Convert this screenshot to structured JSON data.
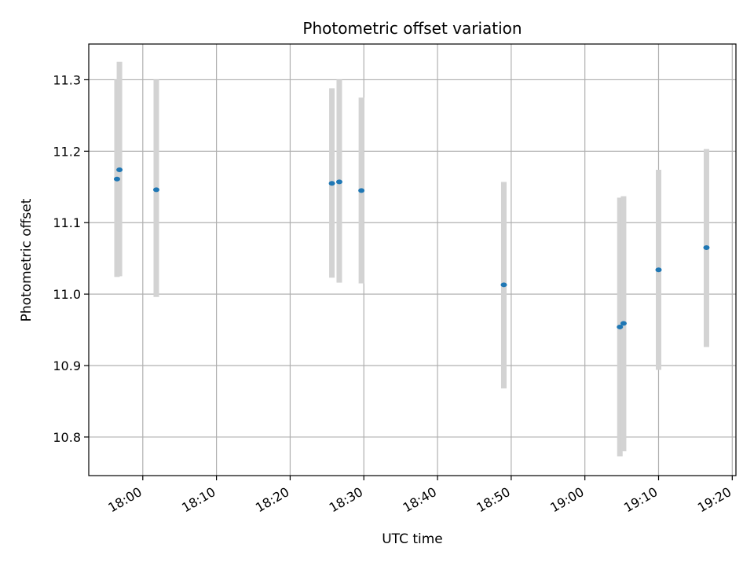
{
  "chart_data": {
    "type": "scatter",
    "title": "Photometric offset variation",
    "xlabel": "UTC time",
    "ylabel": "Photometric offset",
    "x_tick_labels": [
      "18:00",
      "18:10",
      "18:20",
      "18:30",
      "18:40",
      "18:50",
      "19:00",
      "19:10",
      "19:20"
    ],
    "y_tick_labels": [
      "10.8",
      "10.9",
      "11.0",
      "11.1",
      "11.2",
      "11.3"
    ],
    "xlim": [
      "17:52:40",
      "19:20:30"
    ],
    "ylim": [
      10.746,
      11.35
    ],
    "grid": true,
    "legend": "none",
    "series": [
      {
        "points": [
          {
            "x": "17:56:30",
            "y": 11.161,
            "err_low": 11.024,
            "err_high": 11.3
          },
          {
            "x": "17:56:50",
            "y": 11.174,
            "err_low": 11.025,
            "err_high": 11.325
          },
          {
            "x": "18:01:50",
            "y": 11.146,
            "err_low": 10.996,
            "err_high": 11.3
          },
          {
            "x": "18:25:40",
            "y": 11.155,
            "err_low": 11.023,
            "err_high": 11.288
          },
          {
            "x": "18:26:40",
            "y": 11.157,
            "err_low": 11.016,
            "err_high": 11.3
          },
          {
            "x": "18:29:40",
            "y": 11.145,
            "err_low": 11.015,
            "err_high": 11.275
          },
          {
            "x": "18:49:00",
            "y": 11.013,
            "err_low": 10.868,
            "err_high": 11.157
          },
          {
            "x": "19:04:45",
            "y": 10.954,
            "err_low": 10.773,
            "err_high": 11.135
          },
          {
            "x": "19:05:15",
            "y": 10.959,
            "err_low": 10.78,
            "err_high": 11.137
          },
          {
            "x": "19:10:00",
            "y": 11.034,
            "err_low": 10.894,
            "err_high": 11.174
          },
          {
            "x": "19:16:30",
            "y": 11.065,
            "err_low": 10.926,
            "err_high": 11.203
          }
        ]
      }
    ],
    "colors": {
      "point": "#1f77b4",
      "errorbar": "#d3d3d3",
      "grid": "#b0b0b0",
      "axes": "#000000"
    }
  }
}
